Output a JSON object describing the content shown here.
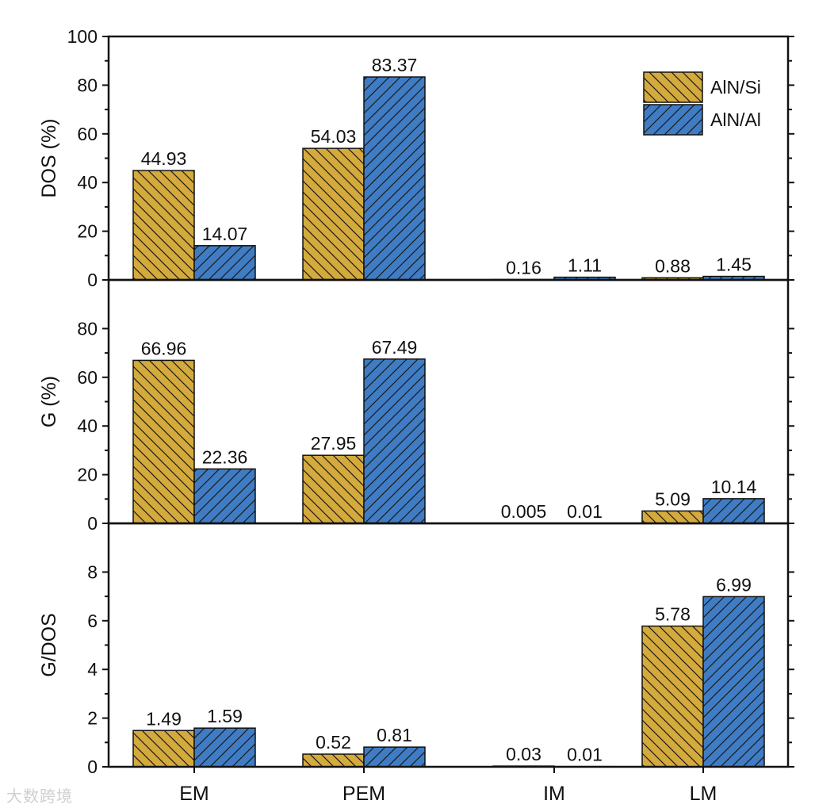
{
  "chart_data": {
    "type": "bar",
    "categories": [
      "EM",
      "PEM",
      "IM",
      "LM"
    ],
    "series_names": [
      "AlN/Si",
      "AlN/Al"
    ],
    "colors": {
      "AlN/Si": "#D4AA3D",
      "AlN/Al": "#3F7CC4"
    },
    "legend": {
      "position": "top-right",
      "entries": [
        "AlN/Si",
        "AlN/Al"
      ]
    },
    "panels": [
      {
        "ylabel": "DOS (%)",
        "ylim": [
          0,
          100
        ],
        "yticks": [
          0,
          20,
          40,
          60,
          80,
          100
        ],
        "series": [
          {
            "name": "AlN/Si",
            "values": [
              44.93,
              54.03,
              0.16,
              0.88
            ],
            "labels": [
              "44.93",
              "54.03",
              "0.16",
              "0.88"
            ]
          },
          {
            "name": "AlN/Al",
            "values": [
              14.07,
              83.37,
              1.11,
              1.45
            ],
            "labels": [
              "14.07",
              "83.37",
              "1.11",
              "1.45"
            ]
          }
        ]
      },
      {
        "ylabel": "G (%)",
        "ylim": [
          0,
          100
        ],
        "yticks": [
          0,
          20,
          40,
          60,
          80
        ],
        "series": [
          {
            "name": "AlN/Si",
            "values": [
              66.96,
              27.95,
              0.005,
              5.09
            ],
            "labels": [
              "66.96",
              "27.95",
              "0.005",
              "5.09"
            ]
          },
          {
            "name": "AlN/Al",
            "values": [
              22.36,
              67.49,
              0.01,
              10.14
            ],
            "labels": [
              "22.36",
              "67.49",
              "0.01",
              "10.14"
            ]
          }
        ]
      },
      {
        "ylabel": "G/DOS",
        "ylim": [
          0,
          10
        ],
        "yticks": [
          0,
          2,
          4,
          6,
          8
        ],
        "series": [
          {
            "name": "AlN/Si",
            "values": [
              1.49,
              0.52,
              0.03,
              5.78
            ],
            "labels": [
              "1.49",
              "0.52",
              "0.03",
              "5.78"
            ]
          },
          {
            "name": "AlN/Al",
            "values": [
              1.59,
              0.81,
              0.01,
              6.99
            ],
            "labels": [
              "1.59",
              "0.81",
              "0.01",
              "6.99"
            ]
          }
        ]
      }
    ]
  },
  "watermark": "大数跨境"
}
